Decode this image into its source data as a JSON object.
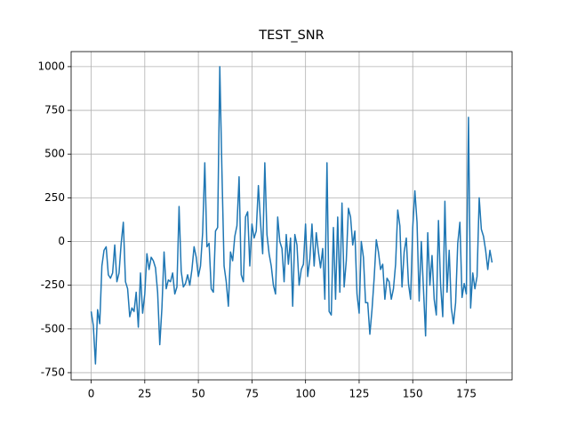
{
  "chart_data": {
    "type": "line",
    "title": "TEST_SNR",
    "x": [
      0,
      1,
      2,
      3,
      4,
      5,
      6,
      7,
      8,
      9,
      10,
      11,
      12,
      13,
      14,
      15,
      16,
      17,
      18,
      19,
      20,
      21,
      22,
      23,
      24,
      25,
      26,
      27,
      28,
      29,
      30,
      31,
      32,
      33,
      34,
      35,
      36,
      37,
      38,
      39,
      40,
      41,
      42,
      43,
      44,
      45,
      46,
      47,
      48,
      49,
      50,
      51,
      52,
      53,
      54,
      55,
      56,
      57,
      58,
      59,
      60,
      61,
      62,
      63,
      64,
      65,
      66,
      67,
      68,
      69,
      70,
      71,
      72,
      73,
      74,
      75,
      76,
      77,
      78,
      79,
      80,
      81,
      82,
      83,
      84,
      85,
      86,
      87,
      88,
      89,
      90,
      91,
      92,
      93,
      94,
      95,
      96,
      97,
      98,
      99,
      100,
      101,
      102,
      103,
      104,
      105,
      106,
      107,
      108,
      109,
      110,
      111,
      112,
      113,
      114,
      115,
      116,
      117,
      118,
      119,
      120,
      121,
      122,
      123,
      124,
      125,
      126,
      127,
      128,
      129,
      130,
      131,
      132,
      133,
      134,
      135,
      136,
      137,
      138,
      139,
      140,
      141,
      142,
      143,
      144,
      145,
      146,
      147,
      148,
      149,
      150,
      151,
      152,
      153,
      154,
      155,
      156,
      157,
      158,
      159,
      160,
      161,
      162,
      163,
      164,
      165,
      166,
      167,
      168,
      169,
      170,
      171,
      172,
      173,
      174,
      175,
      176,
      177,
      178,
      179,
      180,
      181,
      182,
      183,
      184,
      185,
      186,
      187
    ],
    "series": [
      {
        "color": "#1f77b4",
        "values": [
          -400,
          -480,
          -700,
          -390,
          -470,
          -140,
          -50,
          -30,
          -190,
          -210,
          -180,
          -20,
          -230,
          -180,
          -10,
          110,
          -230,
          -270,
          -430,
          -380,
          -400,
          -290,
          -490,
          -180,
          -410,
          -300,
          -70,
          -160,
          -90,
          -110,
          -150,
          -290,
          -590,
          -380,
          -60,
          -270,
          -220,
          -230,
          -180,
          -300,
          -260,
          200,
          -170,
          -260,
          -240,
          -190,
          -250,
          -160,
          -30,
          -90,
          -200,
          -140,
          50,
          450,
          -30,
          -10,
          -270,
          -290,
          60,
          80,
          1000,
          400,
          -140,
          -230,
          -370,
          -60,
          -110,
          30,
          90,
          370,
          -190,
          -230,
          140,
          170,
          -140,
          100,
          20,
          60,
          320,
          110,
          -70,
          450,
          40,
          -70,
          -140,
          -250,
          -300,
          140,
          0,
          -40,
          -230,
          40,
          -130,
          20,
          -370,
          40,
          -20,
          -250,
          -160,
          -130,
          100,
          -200,
          -100,
          100,
          -140,
          50,
          -60,
          -150,
          -40,
          -330,
          450,
          -400,
          -420,
          80,
          -330,
          140,
          -290,
          220,
          -260,
          -110,
          190,
          140,
          -20,
          60,
          -300,
          -410,
          0,
          -90,
          -350,
          -350,
          -530,
          -390,
          -210,
          10,
          -60,
          -160,
          -130,
          -330,
          -210,
          -230,
          -330,
          -270,
          -130,
          180,
          90,
          -260,
          -60,
          20,
          -240,
          -330,
          80,
          290,
          110,
          -340,
          0,
          -270,
          -540,
          50,
          -250,
          -80,
          -330,
          -420,
          120,
          -250,
          -430,
          230,
          -290,
          -50,
          -380,
          -470,
          -350,
          -10,
          110,
          -320,
          -240,
          -300,
          710,
          -380,
          -180,
          -270,
          -200,
          250,
          70,
          30,
          -50,
          -160,
          -50,
          -120
        ]
      }
    ],
    "xlim": [
      -9.35,
      196.35
    ],
    "ylim": [
      -791,
      1086
    ],
    "xticks": [
      0,
      25,
      50,
      75,
      100,
      125,
      150,
      175
    ],
    "yticks": [
      -750,
      -500,
      -250,
      0,
      250,
      500,
      750,
      1000
    ],
    "grid": true
  }
}
